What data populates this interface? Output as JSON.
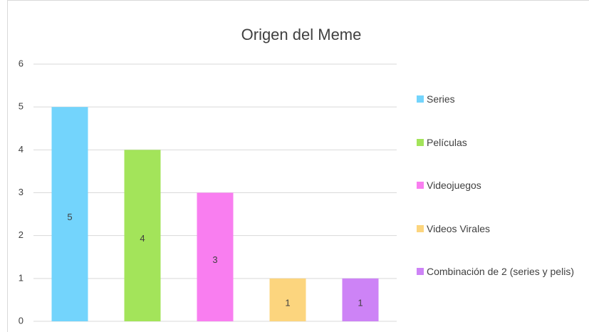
{
  "chart_data": {
    "type": "bar",
    "title": "Origen del Meme",
    "categories": [
      "Series",
      "Películas",
      "Videojuegos",
      "Videos Virales",
      "Combinación de 2 (series y pelis)"
    ],
    "values": [
      5,
      4,
      3,
      1,
      1
    ],
    "colors": [
      "#73d4fc",
      "#a3e45a",
      "#f97ef0",
      "#fcd57e",
      "#cd83f6"
    ],
    "ylim": [
      0,
      6
    ],
    "yticks": [
      0,
      1,
      2,
      3,
      4,
      5,
      6
    ],
    "grid": true,
    "legend": "right"
  }
}
